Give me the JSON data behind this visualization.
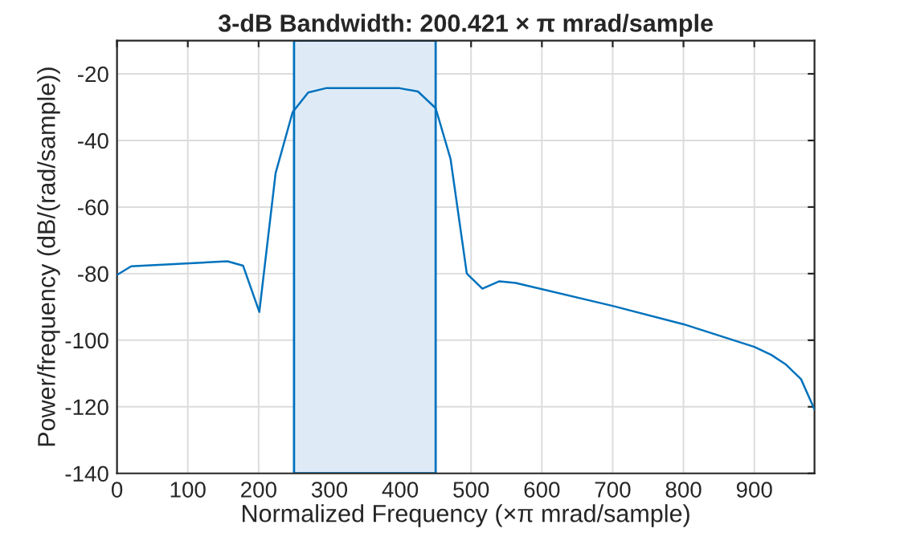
{
  "chart_data": {
    "type": "line",
    "title": "3-dB Bandwidth: 200.421 × π mrad/sample",
    "xlabel": "Normalized Frequency (×π mrad/sample)",
    "ylabel": "Power/frequency (dB/(rad/sample))",
    "series": [
      {
        "color": "#0072bd",
        "x": [
          0,
          20,
          156,
          178,
          201,
          224,
          248,
          270,
          295,
          399,
          425,
          450,
          471,
          494,
          516,
          540,
          563,
          700,
          800,
          900,
          924,
          944,
          966,
          985
        ],
        "values": [
          -80.4,
          -77.8,
          -76.3,
          -77.6,
          -91.5,
          -49.8,
          -31.5,
          -25.6,
          -24.3,
          -24.3,
          -25.3,
          -30.3,
          -45.5,
          -80,
          -84.5,
          -82.3,
          -82.8,
          -89.7,
          -95.2,
          -102,
          -104.4,
          -107.2,
          -111.7,
          -120.8
        ]
      }
    ],
    "bands": [
      {
        "axis": "x",
        "from": 250,
        "to": 450,
        "color": "#deebf7"
      }
    ],
    "xlim": [
      0,
      985
    ],
    "ylim": [
      -140,
      -10
    ],
    "xticks": [
      0,
      100,
      200,
      300,
      400,
      500,
      600,
      700,
      800,
      900
    ],
    "yticks": [
      -140,
      -120,
      -100,
      -80,
      -60,
      -40,
      -20
    ],
    "grid": true,
    "legend": false,
    "marker": "none",
    "line_style": "solid"
  }
}
